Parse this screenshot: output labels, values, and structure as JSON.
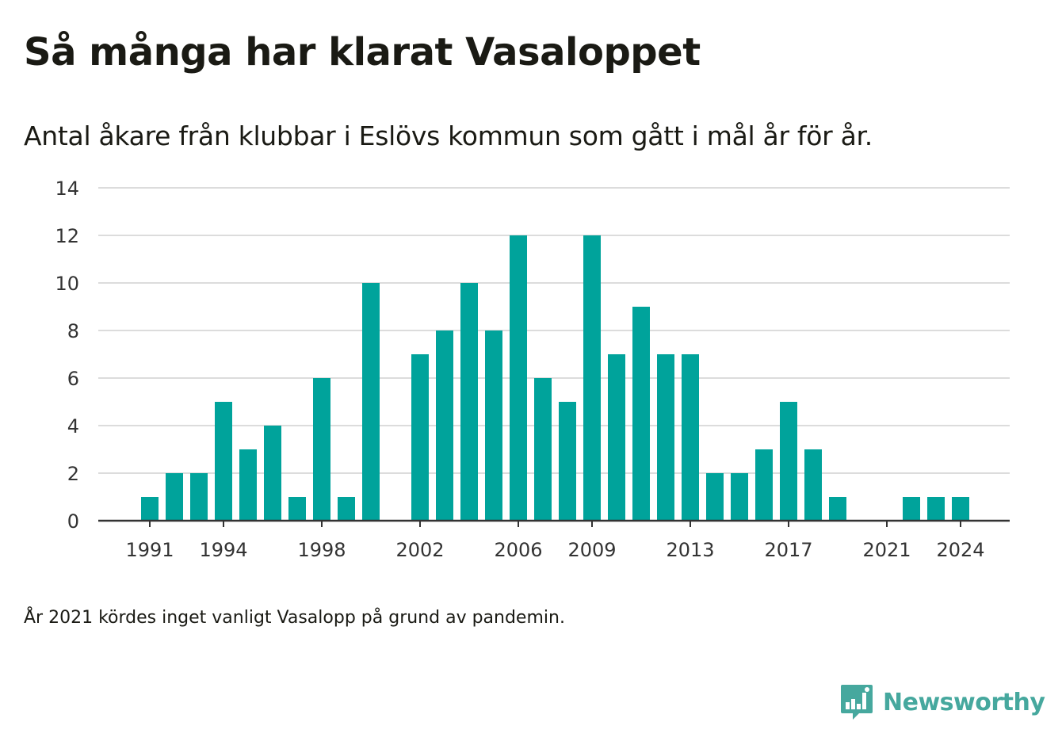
{
  "title": "Så många har klarat Vasaloppet",
  "subtitle": "Antal åkare från klubbar i Eslövs kommun som gått i mål år för år.",
  "footnote": "År 2021 kördes inget vanligt Vasalopp på grund av pandemin.",
  "brand": {
    "name": "Newsworthy",
    "icon": "newsworthy-logo-icon",
    "color": "#46a89e"
  },
  "chart_data": {
    "type": "bar",
    "title": "Så många har klarat Vasaloppet",
    "subtitle": "Antal åkare från klubbar i Eslövs kommun som gått i mål år för år.",
    "xlabel": "",
    "ylabel": "",
    "categories": [
      1989,
      1990,
      1991,
      1992,
      1993,
      1994,
      1995,
      1996,
      1997,
      1998,
      1999,
      2000,
      2001,
      2002,
      2003,
      2004,
      2005,
      2006,
      2007,
      2008,
      2009,
      2010,
      2011,
      2012,
      2013,
      2014,
      2015,
      2016,
      2017,
      2018,
      2019,
      2020,
      2021,
      2022,
      2023,
      2024,
      2025,
      2026
    ],
    "values": [
      0,
      0,
      1,
      2,
      2,
      5,
      3,
      4,
      1,
      6,
      1,
      10,
      0,
      7,
      8,
      10,
      8,
      12,
      6,
      5,
      12,
      7,
      9,
      7,
      7,
      2,
      2,
      3,
      5,
      3,
      1,
      0,
      0,
      1,
      1,
      1,
      0,
      0
    ],
    "x_tick_labels": [
      "1991",
      "1994",
      "1998",
      "2002",
      "2006",
      "2009",
      "2013",
      "2017",
      "2021",
      "2024"
    ],
    "y_ticks": [
      0,
      2,
      4,
      6,
      8,
      10,
      12,
      14
    ],
    "ylim": [
      0,
      14
    ],
    "grid": true,
    "legend": "none",
    "bar_color": "#00a39b",
    "grid_color": "#dcdcdc",
    "axis_color": "#333333"
  }
}
